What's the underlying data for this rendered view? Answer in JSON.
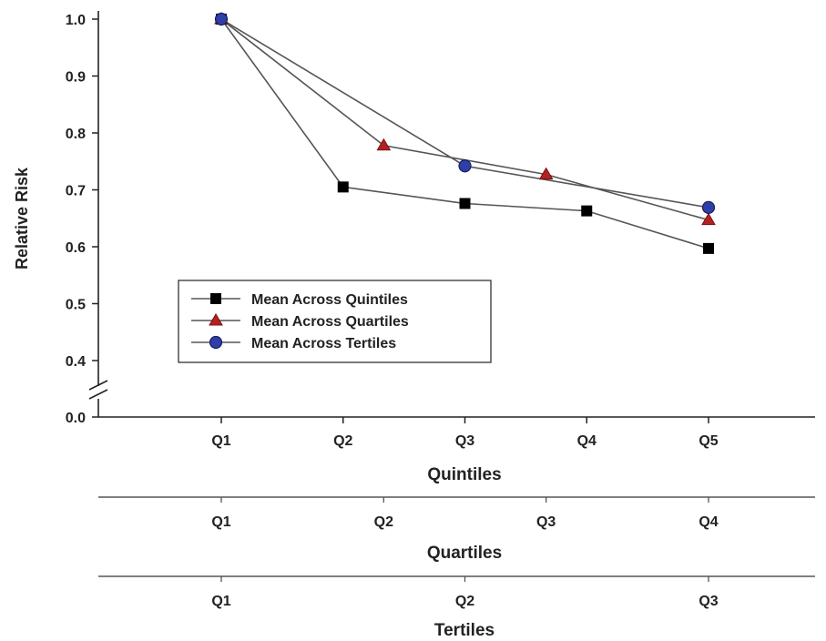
{
  "chart_data": {
    "type": "line",
    "ylabel": "Relative Risk",
    "y_ticks": [
      "0.0",
      "0.4",
      "0.5",
      "0.6",
      "0.7",
      "0.8",
      "0.9",
      "1.0"
    ],
    "ylim": [
      0.0,
      1.0
    ],
    "y_axis_break": true,
    "x_axes": [
      {
        "name": "Quintiles",
        "ticks": [
          "Q1",
          "Q2",
          "Q3",
          "Q4",
          "Q5"
        ]
      },
      {
        "name": "Quartiles",
        "ticks": [
          "Q1",
          "Q2",
          "Q3",
          "Q4"
        ]
      },
      {
        "name": "Tertiles",
        "ticks": [
          "Q1",
          "Q2",
          "Q3"
        ]
      }
    ],
    "series": [
      {
        "name": "Mean Across Quintiles",
        "axis": "Quintiles",
        "marker": "square",
        "color": "#000000",
        "x": [
          "Q1",
          "Q2",
          "Q3",
          "Q4",
          "Q5"
        ],
        "values": [
          1.0,
          0.705,
          0.676,
          0.663,
          0.597
        ]
      },
      {
        "name": "Mean Across Quartiles",
        "axis": "Quartiles",
        "marker": "triangle",
        "color": "#b22222",
        "x": [
          "Q1",
          "Q2",
          "Q3",
          "Q4"
        ],
        "values": [
          1.0,
          0.778,
          0.727,
          0.647
        ]
      },
      {
        "name": "Mean Across Tertiles",
        "axis": "Tertiles",
        "marker": "circle",
        "color": "#2e3fa8",
        "x": [
          "Q1",
          "Q2",
          "Q3"
        ],
        "values": [
          1.0,
          0.742,
          0.669
        ]
      }
    ],
    "legend_position": "lower-left inside plot",
    "grid": false
  }
}
